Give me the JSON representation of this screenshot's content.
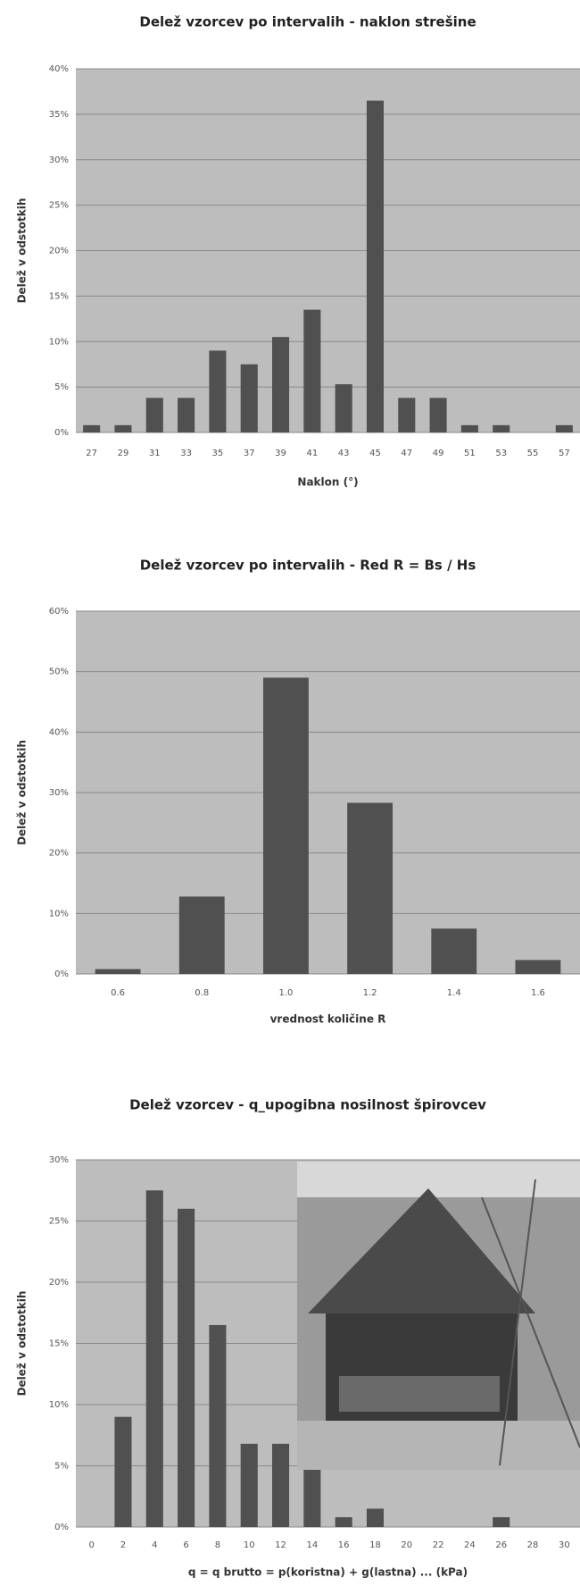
{
  "chart_data": [
    {
      "type": "bar",
      "title": "Delež vzorcev po intervalih - naklon strešine",
      "x_label": "Naklon (°)",
      "y_label": "Delež v odstotkih",
      "categories": [
        "27",
        "29",
        "31",
        "33",
        "35",
        "37",
        "39",
        "41",
        "43",
        "45",
        "47",
        "49",
        "51",
        "53",
        "55",
        "57"
      ],
      "values": [
        0.8,
        0.8,
        3.8,
        3.8,
        9,
        7.5,
        10.5,
        13.5,
        5.3,
        36.5,
        3.8,
        3.8,
        0.8,
        0.8,
        0,
        0.8
      ],
      "color": "#505050",
      "ylim": [
        0,
        40
      ],
      "yticks": [
        {
          "value": 0,
          "label": "0%"
        },
        {
          "value": 5,
          "label": "5%"
        },
        {
          "value": 10,
          "label": "10%"
        },
        {
          "value": 15,
          "label": "15%"
        },
        {
          "value": 20,
          "label": "20%"
        },
        {
          "value": 25,
          "label": "25%"
        },
        {
          "value": 30,
          "label": "30%"
        },
        {
          "value": 35,
          "label": "35%"
        },
        {
          "value": 40,
          "label": "40%"
        }
      ],
      "grid": true
    },
    {
      "type": "bar",
      "title": "Delež vzorcev po intervalih - Red R = Bs / Hs",
      "x_label": "vrednost količine R",
      "y_label": "Delež v odstotkih",
      "categories": [
        "0.6",
        "0.8",
        "1.0",
        "1.2",
        "1.4",
        "1.6"
      ],
      "values": [
        0.8,
        12.8,
        49,
        28.3,
        7.5,
        2.3
      ],
      "color": "#505050",
      "ylim": [
        0,
        60
      ],
      "yticks": [
        {
          "value": 0,
          "label": "0%"
        },
        {
          "value": 10,
          "label": "10%"
        },
        {
          "value": 20,
          "label": "20%"
        },
        {
          "value": 30,
          "label": "30%"
        },
        {
          "value": 40,
          "label": "40%"
        },
        {
          "value": 50,
          "label": "50%"
        },
        {
          "value": 60,
          "label": "60%"
        }
      ],
      "grid": true
    },
    {
      "type": "bar",
      "title": "Delež vzorcev - q_upogibna nosilnost špirovcev",
      "x_label": "q = q brutto = p(koristna) + g(lastna) ... (kPa)",
      "y_label": "Delež v odstotkih",
      "categories": [
        "0",
        "2",
        "4",
        "6",
        "8",
        "10",
        "12",
        "14",
        "16",
        "18",
        "20",
        "22",
        "24",
        "26",
        "28",
        "30"
      ],
      "values": [
        0,
        9,
        27.5,
        26,
        16.5,
        6.8,
        6.8,
        5.3,
        0.8,
        1.5,
        0,
        0,
        0,
        0.8,
        0,
        0
      ],
      "color": "#505050",
      "ylim": [
        0,
        30
      ],
      "yticks": [
        {
          "value": 0,
          "label": "0%"
        },
        {
          "value": 5,
          "label": "5%"
        },
        {
          "value": 10,
          "label": "10%"
        },
        {
          "value": 15,
          "label": "15%"
        },
        {
          "value": 20,
          "label": "20%"
        },
        {
          "value": 25,
          "label": "25%"
        },
        {
          "value": 30,
          "label": "30%"
        }
      ],
      "grid": true
    }
  ]
}
